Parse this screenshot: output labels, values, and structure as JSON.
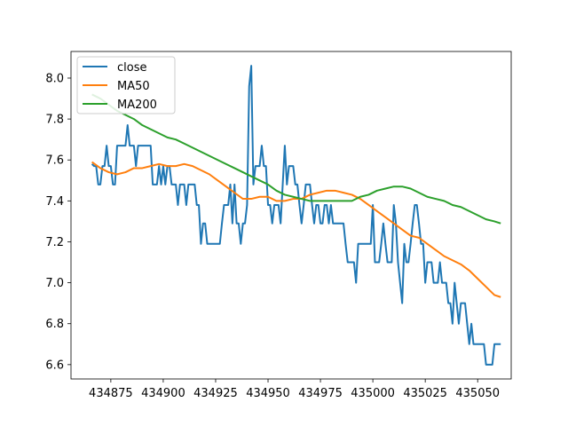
{
  "chart_data": {
    "type": "line",
    "title": "",
    "xlabel": "",
    "ylabel": "",
    "xlim": [
      434856,
      435066
    ],
    "ylim": [
      6.53,
      8.13
    ],
    "grid": false,
    "legend_position": "top-left",
    "x_ticks": [
      434875,
      434900,
      434925,
      434950,
      434975,
      435000,
      435025,
      435050
    ],
    "x_tick_labels": [
      "434875",
      "434900",
      "434925",
      "434950",
      "434975",
      "435000",
      "435025",
      "435050"
    ],
    "y_ticks": [
      6.6,
      6.8,
      7.0,
      7.2,
      7.4,
      7.6,
      7.8,
      8.0
    ],
    "y_tick_labels": [
      "6.6",
      "6.8",
      "7.0",
      "7.2",
      "7.4",
      "7.6",
      "7.8",
      "8.0"
    ],
    "series": [
      {
        "name": "close",
        "color": "#1f77b4",
        "points": [
          [
            434866,
            7.58
          ],
          [
            434867,
            7.57
          ],
          [
            434868,
            7.57
          ],
          [
            434869,
            7.48
          ],
          [
            434870,
            7.48
          ],
          [
            434871,
            7.57
          ],
          [
            434872,
            7.57
          ],
          [
            434873,
            7.67
          ],
          [
            434874,
            7.57
          ],
          [
            434875,
            7.57
          ],
          [
            434876,
            7.48
          ],
          [
            434877,
            7.48
          ],
          [
            434878,
            7.67
          ],
          [
            434879,
            7.67
          ],
          [
            434880,
            7.67
          ],
          [
            434881,
            7.67
          ],
          [
            434882,
            7.67
          ],
          [
            434883,
            7.77
          ],
          [
            434884,
            7.67
          ],
          [
            434885,
            7.67
          ],
          [
            434886,
            7.67
          ],
          [
            434887,
            7.57
          ],
          [
            434888,
            7.67
          ],
          [
            434889,
            7.67
          ],
          [
            434890,
            7.67
          ],
          [
            434891,
            7.67
          ],
          [
            434892,
            7.67
          ],
          [
            434893,
            7.67
          ],
          [
            434894,
            7.67
          ],
          [
            434895,
            7.48
          ],
          [
            434896,
            7.48
          ],
          [
            434897,
            7.48
          ],
          [
            434898,
            7.57
          ],
          [
            434899,
            7.48
          ],
          [
            434900,
            7.57
          ],
          [
            434901,
            7.48
          ],
          [
            434902,
            7.57
          ],
          [
            434903,
            7.57
          ],
          [
            434904,
            7.48
          ],
          [
            434905,
            7.48
          ],
          [
            434906,
            7.48
          ],
          [
            434907,
            7.38
          ],
          [
            434908,
            7.48
          ],
          [
            434909,
            7.48
          ],
          [
            434910,
            7.48
          ],
          [
            434911,
            7.38
          ],
          [
            434912,
            7.48
          ],
          [
            434913,
            7.48
          ],
          [
            434914,
            7.48
          ],
          [
            434915,
            7.48
          ],
          [
            434916,
            7.38
          ],
          [
            434917,
            7.38
          ],
          [
            434918,
            7.19
          ],
          [
            434919,
            7.29
          ],
          [
            434920,
            7.29
          ],
          [
            434921,
            7.19
          ],
          [
            434922,
            7.19
          ],
          [
            434923,
            7.19
          ],
          [
            434924,
            7.19
          ],
          [
            434925,
            7.19
          ],
          [
            434926,
            7.19
          ],
          [
            434927,
            7.19
          ],
          [
            434928,
            7.29
          ],
          [
            434929,
            7.38
          ],
          [
            434930,
            7.38
          ],
          [
            434931,
            7.38
          ],
          [
            434932,
            7.48
          ],
          [
            434933,
            7.29
          ],
          [
            434934,
            7.48
          ],
          [
            434935,
            7.29
          ],
          [
            434936,
            7.29
          ],
          [
            434937,
            7.19
          ],
          [
            434938,
            7.29
          ],
          [
            434939,
            7.29
          ],
          [
            434940,
            7.38
          ],
          [
            434941,
            7.96
          ],
          [
            434942,
            8.06
          ],
          [
            434943,
            7.48
          ],
          [
            434944,
            7.57
          ],
          [
            434945,
            7.57
          ],
          [
            434946,
            7.57
          ],
          [
            434947,
            7.67
          ],
          [
            434948,
            7.57
          ],
          [
            434949,
            7.57
          ],
          [
            434950,
            7.38
          ],
          [
            434951,
            7.38
          ],
          [
            434952,
            7.29
          ],
          [
            434953,
            7.38
          ],
          [
            434954,
            7.38
          ],
          [
            434955,
            7.38
          ],
          [
            434956,
            7.29
          ],
          [
            434957,
            7.48
          ],
          [
            434958,
            7.67
          ],
          [
            434959,
            7.48
          ],
          [
            434960,
            7.57
          ],
          [
            434961,
            7.57
          ],
          [
            434962,
            7.57
          ],
          [
            434963,
            7.48
          ],
          [
            434964,
            7.48
          ],
          [
            434965,
            7.38
          ],
          [
            434966,
            7.29
          ],
          [
            434967,
            7.38
          ],
          [
            434968,
            7.48
          ],
          [
            434969,
            7.48
          ],
          [
            434970,
            7.48
          ],
          [
            434971,
            7.38
          ],
          [
            434972,
            7.29
          ],
          [
            434973,
            7.38
          ],
          [
            434974,
            7.38
          ],
          [
            434975,
            7.29
          ],
          [
            434976,
            7.29
          ],
          [
            434977,
            7.38
          ],
          [
            434978,
            7.38
          ],
          [
            434979,
            7.29
          ],
          [
            434980,
            7.38
          ],
          [
            434981,
            7.29
          ],
          [
            434982,
            7.29
          ],
          [
            434983,
            7.29
          ],
          [
            434984,
            7.29
          ],
          [
            434985,
            7.29
          ],
          [
            434986,
            7.29
          ],
          [
            434987,
            7.19
          ],
          [
            434988,
            7.1
          ],
          [
            434989,
            7.1
          ],
          [
            434990,
            7.1
          ],
          [
            434991,
            7.1
          ],
          [
            434992,
            7.0
          ],
          [
            434993,
            7.19
          ],
          [
            434994,
            7.19
          ],
          [
            434995,
            7.19
          ],
          [
            434996,
            7.19
          ],
          [
            434997,
            7.19
          ],
          [
            434998,
            7.19
          ],
          [
            434999,
            7.19
          ],
          [
            435000,
            7.38
          ],
          [
            435001,
            7.1
          ],
          [
            435002,
            7.1
          ],
          [
            435003,
            7.1
          ],
          [
            435004,
            7.19
          ],
          [
            435005,
            7.29
          ],
          [
            435006,
            7.19
          ],
          [
            435007,
            7.1
          ],
          [
            435008,
            7.1
          ],
          [
            435009,
            7.1
          ],
          [
            435010,
            7.38
          ],
          [
            435011,
            7.29
          ],
          [
            435012,
            7.1
          ],
          [
            435013,
            7.0
          ],
          [
            435014,
            6.9
          ],
          [
            435015,
            7.19
          ],
          [
            435016,
            7.1
          ],
          [
            435017,
            7.1
          ],
          [
            435018,
            7.19
          ],
          [
            435019,
            7.29
          ],
          [
            435020,
            7.38
          ],
          [
            435021,
            7.38
          ],
          [
            435022,
            7.29
          ],
          [
            435023,
            7.19
          ],
          [
            435024,
            7.19
          ],
          [
            435025,
            7.0
          ],
          [
            435026,
            7.1
          ],
          [
            435027,
            7.1
          ],
          [
            435028,
            7.1
          ],
          [
            435029,
            7.0
          ],
          [
            435030,
            7.0
          ],
          [
            435031,
            7.0
          ],
          [
            435032,
            7.1
          ],
          [
            435033,
            7.0
          ],
          [
            435034,
            7.0
          ],
          [
            435035,
            7.0
          ],
          [
            435036,
            6.9
          ],
          [
            435037,
            6.9
          ],
          [
            435038,
            6.8
          ],
          [
            435039,
            7.0
          ],
          [
            435040,
            6.9
          ],
          [
            435041,
            6.8
          ],
          [
            435042,
            6.9
          ],
          [
            435043,
            6.9
          ],
          [
            435044,
            6.9
          ],
          [
            435045,
            6.8
          ],
          [
            435046,
            6.7
          ],
          [
            435047,
            6.8
          ],
          [
            435048,
            6.7
          ],
          [
            435049,
            6.7
          ],
          [
            435050,
            6.7
          ],
          [
            435051,
            6.7
          ],
          [
            435052,
            6.7
          ],
          [
            435053,
            6.7
          ],
          [
            435054,
            6.6
          ],
          [
            435055,
            6.6
          ],
          [
            435056,
            6.6
          ],
          [
            435057,
            6.6
          ],
          [
            435058,
            6.7
          ],
          [
            435059,
            6.7
          ],
          [
            435060,
            6.7
          ],
          [
            435061,
            6.7
          ]
        ]
      },
      {
        "name": "MA50",
        "color": "#ff7f0e",
        "points": [
          [
            434866,
            7.59
          ],
          [
            434870,
            7.56
          ],
          [
            434874,
            7.54
          ],
          [
            434878,
            7.53
          ],
          [
            434882,
            7.54
          ],
          [
            434886,
            7.56
          ],
          [
            434890,
            7.56
          ],
          [
            434894,
            7.57
          ],
          [
            434898,
            7.58
          ],
          [
            434902,
            7.57
          ],
          [
            434906,
            7.57
          ],
          [
            434910,
            7.58
          ],
          [
            434914,
            7.57
          ],
          [
            434918,
            7.55
          ],
          [
            434922,
            7.53
          ],
          [
            434926,
            7.5
          ],
          [
            434930,
            7.47
          ],
          [
            434934,
            7.44
          ],
          [
            434938,
            7.41
          ],
          [
            434942,
            7.41
          ],
          [
            434946,
            7.42
          ],
          [
            434950,
            7.42
          ],
          [
            434954,
            7.4
          ],
          [
            434958,
            7.4
          ],
          [
            434962,
            7.41
          ],
          [
            434966,
            7.41
          ],
          [
            434970,
            7.43
          ],
          [
            434974,
            7.44
          ],
          [
            434978,
            7.45
          ],
          [
            434982,
            7.45
          ],
          [
            434986,
            7.44
          ],
          [
            434990,
            7.43
          ],
          [
            434994,
            7.41
          ],
          [
            434998,
            7.38
          ],
          [
            435002,
            7.35
          ],
          [
            435006,
            7.32
          ],
          [
            435010,
            7.29
          ],
          [
            435014,
            7.26
          ],
          [
            435018,
            7.23
          ],
          [
            435022,
            7.22
          ],
          [
            435026,
            7.19
          ],
          [
            435030,
            7.16
          ],
          [
            435034,
            7.13
          ],
          [
            435038,
            7.11
          ],
          [
            435042,
            7.09
          ],
          [
            435046,
            7.06
          ],
          [
            435050,
            7.02
          ],
          [
            435054,
            6.98
          ],
          [
            435058,
            6.94
          ],
          [
            435061,
            6.93
          ]
        ]
      },
      {
        "name": "MA200",
        "color": "#2ca02c",
        "points": [
          [
            434866,
            7.92
          ],
          [
            434870,
            7.9
          ],
          [
            434874,
            7.87
          ],
          [
            434878,
            7.84
          ],
          [
            434882,
            7.82
          ],
          [
            434886,
            7.8
          ],
          [
            434890,
            7.77
          ],
          [
            434894,
            7.75
          ],
          [
            434898,
            7.73
          ],
          [
            434902,
            7.71
          ],
          [
            434906,
            7.7
          ],
          [
            434910,
            7.68
          ],
          [
            434914,
            7.66
          ],
          [
            434918,
            7.64
          ],
          [
            434922,
            7.62
          ],
          [
            434926,
            7.6
          ],
          [
            434930,
            7.58
          ],
          [
            434934,
            7.56
          ],
          [
            434938,
            7.54
          ],
          [
            434942,
            7.52
          ],
          [
            434946,
            7.5
          ],
          [
            434950,
            7.48
          ],
          [
            434954,
            7.45
          ],
          [
            434958,
            7.43
          ],
          [
            434962,
            7.42
          ],
          [
            434966,
            7.41
          ],
          [
            434970,
            7.4
          ],
          [
            434974,
            7.4
          ],
          [
            434978,
            7.4
          ],
          [
            434982,
            7.4
          ],
          [
            434986,
            7.4
          ],
          [
            434990,
            7.4
          ],
          [
            434994,
            7.42
          ],
          [
            434998,
            7.43
          ],
          [
            435002,
            7.45
          ],
          [
            435006,
            7.46
          ],
          [
            435010,
            7.47
          ],
          [
            435014,
            7.47
          ],
          [
            435018,
            7.46
          ],
          [
            435022,
            7.44
          ],
          [
            435026,
            7.42
          ],
          [
            435030,
            7.41
          ],
          [
            435034,
            7.4
          ],
          [
            435038,
            7.38
          ],
          [
            435042,
            7.37
          ],
          [
            435046,
            7.35
          ],
          [
            435050,
            7.33
          ],
          [
            435054,
            7.31
          ],
          [
            435058,
            7.3
          ],
          [
            435061,
            7.29
          ]
        ]
      }
    ]
  }
}
